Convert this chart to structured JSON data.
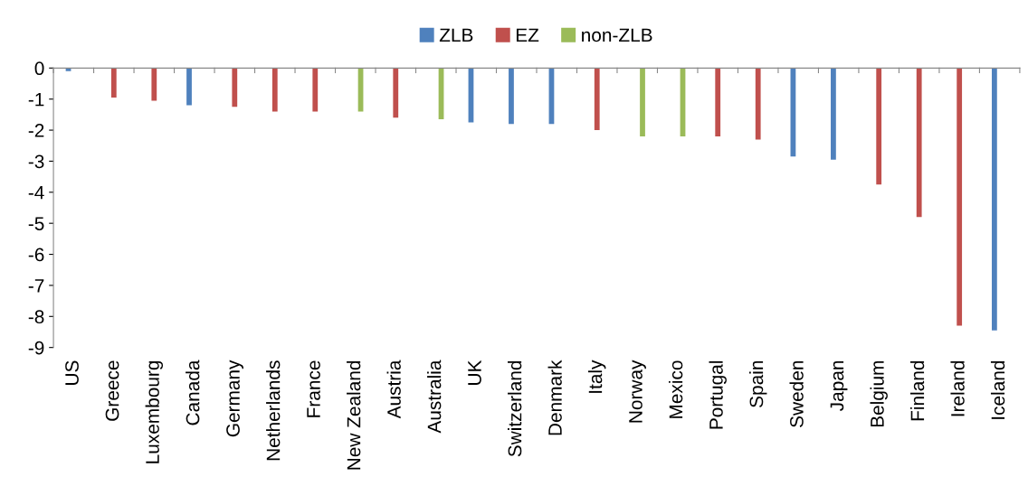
{
  "chart_data": {
    "type": "bar",
    "categories": [
      "US",
      "Greece",
      "Luxembourg",
      "Canada",
      "Germany",
      "Netherlands",
      "France",
      "New Zealand",
      "Austria",
      "Australia",
      "UK",
      "Switzerland",
      "Denmark",
      "Italy",
      "Norway",
      "Mexico",
      "Portugal",
      "Spain",
      "Sweden",
      "Japan",
      "Belgium",
      "Finland",
      "Ireland",
      "Iceland"
    ],
    "series": [
      {
        "name": "ZLB",
        "color": "#4f81bd",
        "values": [
          -0.1,
          null,
          null,
          -1.2,
          null,
          null,
          null,
          null,
          null,
          null,
          -1.75,
          -1.8,
          -1.8,
          null,
          null,
          null,
          null,
          null,
          -2.85,
          -2.95,
          null,
          null,
          null,
          -8.45
        ]
      },
      {
        "name": "EZ",
        "color": "#c0504d",
        "values": [
          null,
          -0.95,
          -1.05,
          null,
          -1.25,
          -1.4,
          -1.4,
          null,
          -1.6,
          null,
          null,
          null,
          null,
          -2.0,
          null,
          null,
          -2.2,
          -2.3,
          null,
          null,
          -3.75,
          -4.8,
          -8.3,
          null
        ]
      },
      {
        "name": "non-ZLB",
        "color": "#9bbb59",
        "values": [
          null,
          null,
          null,
          null,
          null,
          null,
          null,
          -1.4,
          null,
          -1.65,
          null,
          null,
          null,
          null,
          -2.2,
          -2.2,
          null,
          null,
          null,
          null,
          null,
          null,
          null,
          null
        ]
      }
    ],
    "ylim": [
      -9,
      0
    ],
    "yticks": [
      -9,
      -8,
      -7,
      -6,
      -5,
      -4,
      -3,
      -2,
      -1,
      0
    ],
    "grid": false,
    "legend": "top"
  }
}
